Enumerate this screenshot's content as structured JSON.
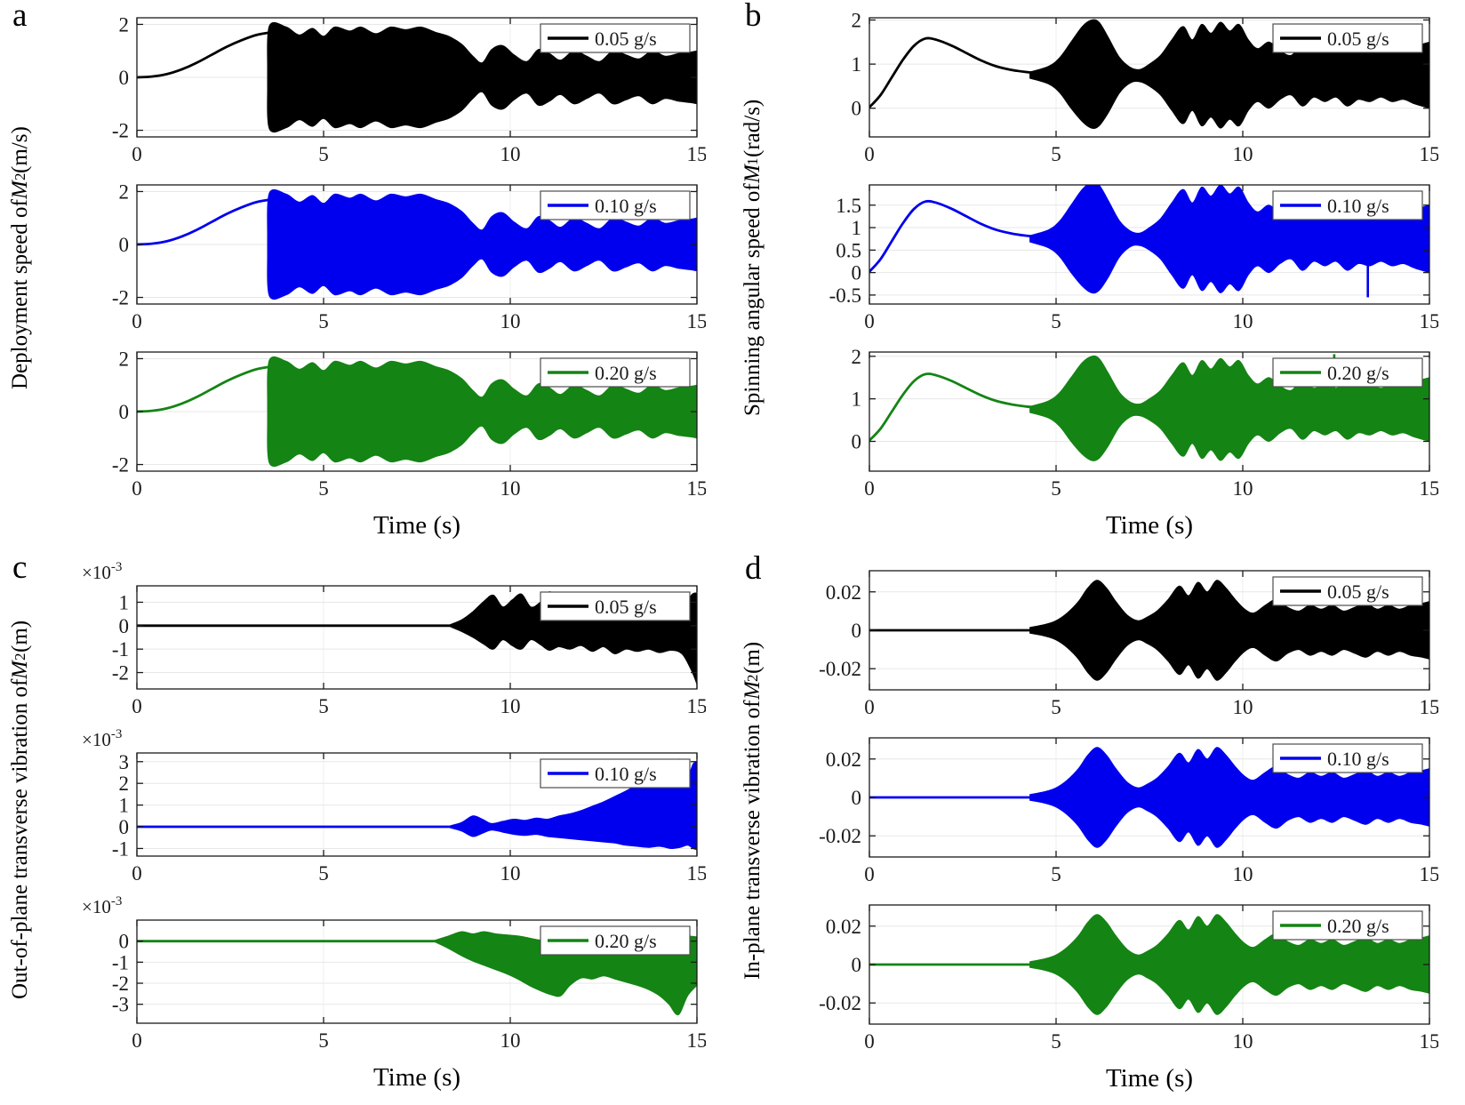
{
  "chart_data": {
    "type": "line",
    "xlabel": "Time (s)",
    "xlim": [
      0,
      15
    ],
    "xticks": [
      0,
      5,
      10,
      15
    ],
    "grid_color_h": "#e7e7e7",
    "grid_color_v": "#efefef",
    "axis_color": "#1a1a1a",
    "legend_border_color": "#4d4d4d",
    "shared_lines": {
      "a": {
        "t": [
          0,
          0.4,
          0.8,
          1.2,
          1.6,
          2,
          2.4,
          2.8,
          3.2,
          3.5
        ],
        "y": [
          0,
          0.03,
          0.12,
          0.3,
          0.55,
          0.85,
          1.15,
          1.4,
          1.6,
          1.68
        ]
      },
      "b": {
        "t": [
          0,
          0.3,
          0.6,
          0.9,
          1.2,
          1.5,
          1.8,
          2.2,
          2.6,
          3,
          3.4,
          3.8,
          4.2,
          4.6,
          5,
          6,
          7.2,
          15
        ],
        "y": [
          0.02,
          0.3,
          0.7,
          1.1,
          1.42,
          1.58,
          1.55,
          1.42,
          1.25,
          1.08,
          0.95,
          0.87,
          0.82,
          0.79,
          0.77,
          0.75,
          0.74,
          0.74
        ]
      }
    },
    "shared_envelopes": {
      "a": {
        "mirror": true,
        "t": [
          3.5,
          3.55,
          4.0,
          4.35,
          4.7,
          5.0,
          5.3,
          5.7,
          6.0,
          6.4,
          6.8,
          7.2,
          7.6,
          8.0,
          8.35,
          8.7,
          9.0,
          9.25,
          9.5,
          9.8,
          10.1,
          10.45,
          10.75,
          11.05,
          11.35,
          11.7,
          12.05,
          12.4,
          12.75,
          13.1,
          13.45,
          13.8,
          14.15,
          14.5,
          14.8,
          15
        ],
        "hi": [
          0.3,
          1.95,
          1.9,
          1.6,
          1.85,
          1.55,
          1.9,
          1.75,
          1.9,
          1.65,
          1.9,
          1.8,
          1.9,
          1.7,
          1.55,
          1.25,
          0.8,
          0.55,
          1.05,
          1.2,
          0.85,
          0.6,
          1.05,
          0.9,
          0.65,
          1.0,
          0.8,
          0.6,
          1.0,
          0.85,
          0.7,
          1.0,
          0.8,
          0.9,
          0.95,
          1.0
        ]
      },
      "b": {
        "t": [
          4.3,
          4.8,
          5.1,
          5.4,
          5.7,
          5.95,
          6.15,
          6.4,
          6.7,
          7.0,
          7.25,
          7.5,
          7.8,
          8.1,
          8.4,
          8.65,
          8.9,
          9.15,
          9.4,
          9.65,
          9.9,
          10.15,
          10.4,
          10.7,
          11.0,
          11.3,
          11.6,
          11.9,
          12.2,
          12.5,
          12.8,
          13.1,
          13.4,
          13.7,
          14.0,
          14.3,
          14.6,
          15.0
        ],
        "hi": [
          0.82,
          0.95,
          1.15,
          1.5,
          1.85,
          2.0,
          1.95,
          1.6,
          1.15,
          0.92,
          0.88,
          1.0,
          1.2,
          1.55,
          1.85,
          1.55,
          1.9,
          1.7,
          1.95,
          1.75,
          1.9,
          1.55,
          1.35,
          1.5,
          1.3,
          1.2,
          1.45,
          1.25,
          1.35,
          1.25,
          1.45,
          1.3,
          1.35,
          1.25,
          1.35,
          1.3,
          1.4,
          1.5
        ],
        "lo": [
          0.68,
          0.55,
          0.35,
          0.0,
          -0.3,
          -0.45,
          -0.4,
          -0.1,
          0.35,
          0.58,
          0.6,
          0.5,
          0.3,
          -0.05,
          -0.35,
          -0.05,
          -0.4,
          -0.2,
          -0.45,
          -0.25,
          -0.4,
          -0.05,
          0.15,
          0.0,
          0.2,
          0.3,
          0.05,
          0.25,
          0.15,
          0.25,
          0.05,
          0.2,
          0.15,
          0.25,
          0.15,
          0.2,
          0.1,
          0.0
        ]
      },
      "d": {
        "mirror": true,
        "t": [
          4.3,
          4.7,
          5.0,
          5.3,
          5.6,
          5.85,
          6.1,
          6.35,
          6.6,
          6.9,
          7.2,
          7.45,
          7.7,
          8.0,
          8.3,
          8.55,
          8.8,
          9.05,
          9.3,
          9.55,
          9.8,
          10.05,
          10.3,
          10.6,
          10.9,
          11.2,
          11.5,
          11.8,
          12.1,
          12.4,
          12.7,
          13.0,
          13.3,
          13.6,
          13.9,
          14.2,
          14.5,
          14.8,
          15.0
        ],
        "hi": [
          0.0015,
          0.003,
          0.005,
          0.009,
          0.015,
          0.022,
          0.026,
          0.022,
          0.015,
          0.008,
          0.005,
          0.007,
          0.01,
          0.016,
          0.023,
          0.018,
          0.025,
          0.02,
          0.026,
          0.022,
          0.016,
          0.011,
          0.009,
          0.013,
          0.016,
          0.012,
          0.01,
          0.013,
          0.011,
          0.013,
          0.01,
          0.012,
          0.014,
          0.011,
          0.013,
          0.011,
          0.013,
          0.014,
          0.015
        ]
      }
    },
    "panels": [
      {
        "letter": "a",
        "xlabel": "Time (s)",
        "ylabel_parts": [
          [
            "t",
            "Deployment speed of "
          ],
          [
            "i",
            "M"
          ],
          [
            "sub",
            "2"
          ],
          [
            "t",
            " (m/s)"
          ]
        ],
        "subplots": [
          {
            "legend": "0.05 g/s",
            "color": "#000000",
            "ylim": [
              -2.25,
              2.25
            ],
            "yticks": [
              -2,
              0,
              2
            ],
            "line": "a",
            "env": "a"
          },
          {
            "legend": "0.10 g/s",
            "color": "#0000ee",
            "ylim": [
              -2.25,
              2.25
            ],
            "yticks": [
              -2,
              0,
              2
            ],
            "line": "a",
            "env": "a"
          },
          {
            "legend": "0.20 g/s",
            "color": "#148414",
            "ylim": [
              -2.25,
              2.25
            ],
            "yticks": [
              -2,
              0,
              2
            ],
            "line": "a",
            "env": "a"
          }
        ]
      },
      {
        "letter": "b",
        "xlabel": "Time (s)",
        "ylabel_parts": [
          [
            "t",
            "Spinning angular speed of "
          ],
          [
            "i",
            "M"
          ],
          [
            "sub",
            "1"
          ],
          [
            "t",
            " (rad/s)"
          ]
        ],
        "subplots": [
          {
            "legend": "0.05 g/s",
            "color": "#000000",
            "ylim": [
              -0.65,
              2.05
            ],
            "yticks": [
              0,
              1,
              2
            ],
            "line": "b",
            "env": "b"
          },
          {
            "legend": "0.10 g/s",
            "color": "#0000ee",
            "ylim": [
              -0.7,
              1.95
            ],
            "yticks": [
              -0.5,
              0,
              0.5,
              1,
              1.5
            ],
            "line": "b",
            "env": "b",
            "spikes": [
              {
                "t": 13.35,
                "y0": 0.2,
                "y1": -0.55
              }
            ]
          },
          {
            "legend": "0.20 g/s",
            "color": "#148414",
            "ylim": [
              -0.7,
              2.1
            ],
            "yticks": [
              0,
              1,
              2
            ],
            "line": "b",
            "env": "b",
            "spikes": [
              {
                "t": 12.45,
                "y0": 1.2,
                "y1": 2.05
              }
            ]
          }
        ]
      },
      {
        "letter": "c",
        "xlabel": "Time (s)",
        "ylabel_parts": [
          [
            "t",
            "Out-of-plane transverse vibration of "
          ],
          [
            "i",
            "M"
          ],
          [
            "sub",
            "2"
          ],
          [
            "t",
            " (m)"
          ]
        ],
        "subplots": [
          {
            "legend": "0.05 g/s",
            "color": "#000000",
            "ylim": [
              -2.7,
              1.7
            ],
            "yticks": [
              -2,
              -1,
              0,
              1
            ],
            "exp_label": {
              "base": "×10",
              "exp": "-3"
            },
            "line": {
              "t": [
                0,
                8.4
              ],
              "y": [
                0,
                0
              ]
            },
            "env": {
              "t": [
                8.4,
                8.7,
                9.0,
                9.3,
                9.55,
                9.8,
                10.05,
                10.3,
                10.55,
                10.8,
                11.05,
                11.3,
                11.6,
                11.9,
                12.2,
                12.5,
                12.8,
                13.1,
                13.4,
                13.7,
                14.0,
                14.3,
                14.6,
                14.85,
                15.0
              ],
              "hi": [
                0.05,
                0.25,
                0.6,
                1.05,
                1.3,
                0.8,
                1.1,
                1.35,
                0.8,
                1.0,
                1.45,
                1.1,
                0.7,
                0.6,
                0.7,
                0.5,
                0.6,
                0.5,
                0.55,
                0.5,
                0.55,
                0.5,
                0.6,
                1.3,
                1.4
              ],
              "lo": [
                -0.05,
                -0.25,
                -0.5,
                -0.8,
                -1.0,
                -0.6,
                -0.85,
                -1.0,
                -0.6,
                -0.8,
                -1.05,
                -0.9,
                -1.0,
                -0.85,
                -1.1,
                -0.9,
                -1.2,
                -1.0,
                -1.1,
                -1.0,
                -1.15,
                -1.05,
                -1.2,
                -1.9,
                -2.5
              ]
            }
          },
          {
            "legend": "0.10 g/s",
            "color": "#0000ee",
            "ylim": [
              -1.35,
              3.4
            ],
            "yticks": [
              -1,
              0,
              1,
              2,
              3
            ],
            "exp_label": {
              "base": "×10",
              "exp": "-3"
            },
            "line": {
              "t": [
                0,
                8.4
              ],
              "y": [
                0,
                0
              ]
            },
            "env": {
              "t": [
                8.4,
                8.7,
                9.0,
                9.25,
                9.5,
                9.8,
                10.1,
                10.4,
                10.7,
                11.0,
                11.3,
                11.6,
                11.9,
                12.2,
                12.5,
                12.8,
                13.1,
                13.4,
                13.7,
                14.0,
                14.3,
                14.55,
                14.75,
                14.9,
                15.0
              ],
              "hi": [
                0.05,
                0.2,
                0.5,
                0.35,
                0.15,
                0.25,
                0.35,
                0.3,
                0.4,
                0.35,
                0.5,
                0.6,
                0.75,
                0.95,
                1.15,
                1.4,
                1.65,
                1.95,
                2.3,
                2.6,
                2.9,
                3.1,
                2.4,
                2.9,
                3.0
              ],
              "lo": [
                -0.05,
                -0.2,
                -0.45,
                -0.3,
                -0.15,
                -0.25,
                -0.35,
                -0.4,
                -0.35,
                -0.45,
                -0.5,
                -0.55,
                -0.6,
                -0.65,
                -0.7,
                -0.75,
                -0.85,
                -0.9,
                -0.95,
                -0.9,
                -1.0,
                -0.95,
                -0.85,
                -1.0,
                -1.05
              ]
            }
          },
          {
            "legend": "0.20 g/s",
            "color": "#148414",
            "ylim": [
              -3.9,
              1.0
            ],
            "yticks": [
              -3,
              -2,
              -1,
              0
            ],
            "exp_label": {
              "base": "×10",
              "exp": "-3"
            },
            "line": {
              "t": [
                0,
                8.0
              ],
              "y": [
                0,
                0
              ]
            },
            "env": {
              "t": [
                8.0,
                8.35,
                8.7,
                9.0,
                9.3,
                9.6,
                9.9,
                10.2,
                10.5,
                10.8,
                11.1,
                11.35,
                11.6,
                11.9,
                12.2,
                12.5,
                12.8,
                13.1,
                13.4,
                13.7,
                14.0,
                14.25,
                14.5,
                14.75,
                15.0
              ],
              "hi": [
                0.05,
                0.25,
                0.45,
                0.35,
                0.45,
                0.35,
                0.3,
                0.25,
                0.15,
                0.05,
                0.0,
                -0.1,
                0.05,
                0.15,
                0.25,
                0.2,
                0.1,
                0.05,
                0.0,
                -0.15,
                -0.35,
                0.2,
                0.3,
                0.25,
                0.2
              ],
              "lo": [
                -0.05,
                -0.35,
                -0.7,
                -0.95,
                -1.15,
                -1.35,
                -1.55,
                -1.8,
                -2.1,
                -2.35,
                -2.55,
                -2.6,
                -2.1,
                -1.75,
                -1.8,
                -1.65,
                -1.8,
                -1.95,
                -2.1,
                -2.3,
                -2.6,
                -3.0,
                -3.5,
                -2.6,
                -2.1
              ]
            }
          }
        ]
      },
      {
        "letter": "d",
        "xlabel": "Time (s)",
        "ylabel_parts": [
          [
            "t",
            "In-plane transverse vibration of "
          ],
          [
            "i",
            "M"
          ],
          [
            "sub",
            "2"
          ],
          [
            "t",
            " (m)"
          ]
        ],
        "subplots": [
          {
            "legend": "0.05 g/s",
            "color": "#000000",
            "ylim": [
              -0.031,
              0.031
            ],
            "yticks": [
              -0.02,
              0,
              0.02
            ],
            "line": {
              "t": [
                0,
                4.3
              ],
              "y": [
                0,
                0
              ]
            },
            "env": "d"
          },
          {
            "legend": "0.10 g/s",
            "color": "#0000ee",
            "ylim": [
              -0.031,
              0.031
            ],
            "yticks": [
              -0.02,
              0,
              0.02
            ],
            "line": {
              "t": [
                0,
                4.3
              ],
              "y": [
                0,
                0
              ]
            },
            "env": "d"
          },
          {
            "legend": "0.20 g/s",
            "color": "#148414",
            "ylim": [
              -0.031,
              0.031
            ],
            "yticks": [
              -0.02,
              0,
              0.02
            ],
            "line": {
              "t": [
                0,
                4.3
              ],
              "y": [
                0,
                0
              ]
            },
            "env": "d",
            "spikes": [
              {
                "t": 12.4,
                "y0": 0.014,
                "y1": 0.027
              }
            ]
          }
        ]
      }
    ]
  }
}
